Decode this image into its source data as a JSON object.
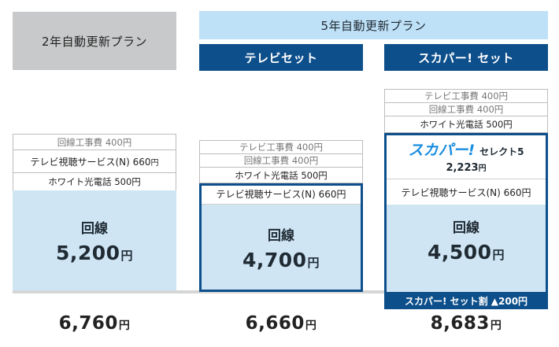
{
  "headers": {
    "plan_2yr": "2年自動更新プラン",
    "plan_5yr": "5年自動更新プラン",
    "tv_set": "テレビセット",
    "skapa_set": "スカパー! セット"
  },
  "col1": {
    "line_fee": "回線工事費 400円",
    "tv_service": "テレビ視聴サービス(N) 660",
    "tv_service_yen": "円",
    "phone": "ホワイト光電話 500円",
    "line_label": "回線",
    "line_amount": "5,200",
    "yen": "円",
    "total": "6,760",
    "total_yen": "円"
  },
  "col2": {
    "tv_fee": "テレビ工事費 400円",
    "line_fee": "回線工事費 400円",
    "phone": "ホワイト光電話 500円",
    "tv_service": "テレビ視聴サービス(N) 660円",
    "line_label": "回線",
    "line_amount": "4,700",
    "yen": "円",
    "total": "6,660",
    "total_yen": "円"
  },
  "col3": {
    "tv_fee": "テレビ工事費 400円",
    "line_fee": "回線工事費 400円",
    "phone": "ホワイト光電話 500円",
    "skapa_logo": "スカパー!",
    "skapa_name": "セレクト5",
    "skapa_price": "2,223",
    "skapa_yen": "円",
    "tv_service": "テレビ視聴サービス(N) 660円",
    "line_label": "回線",
    "line_amount": "4,500",
    "yen": "円",
    "discount": "スカパー! セット割 ▲200円",
    "total": "8,683",
    "total_yen": "円"
  },
  "colors": {
    "dark_blue": "#0d4f8b",
    "light_blue": "#bfe1f7",
    "pale_blue": "#cfe5f4",
    "gray_header": "#c8c9ca",
    "skapa_blue": "#1a8ee0"
  }
}
